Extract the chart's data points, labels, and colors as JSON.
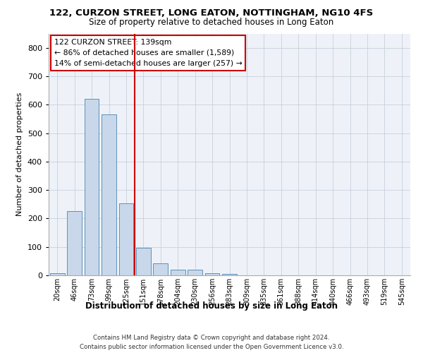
{
  "title": "122, CURZON STREET, LONG EATON, NOTTINGHAM, NG10 4FS",
  "subtitle": "Size of property relative to detached houses in Long Eaton",
  "xlabel": "Distribution of detached houses by size in Long Eaton",
  "ylabel": "Number of detached properties",
  "bar_color": "#c8d8ea",
  "bar_edge_color": "#6090b8",
  "bin_labels": [
    "20sqm",
    "46sqm",
    "73sqm",
    "99sqm",
    "125sqm",
    "151sqm",
    "178sqm",
    "204sqm",
    "230sqm",
    "256sqm",
    "283sqm",
    "309sqm",
    "335sqm",
    "361sqm",
    "388sqm",
    "414sqm",
    "440sqm",
    "466sqm",
    "493sqm",
    "519sqm",
    "545sqm"
  ],
  "bar_values": [
    8,
    225,
    620,
    565,
    253,
    96,
    42,
    20,
    20,
    8,
    4,
    0,
    0,
    0,
    0,
    0,
    0,
    0,
    0,
    0,
    0
  ],
  "vline_x": 4.5,
  "vline_color": "#cc0000",
  "annotation_line1": "122 CURZON STREET: 139sqm",
  "annotation_line2": "← 86% of detached houses are smaller (1,589)",
  "annotation_line3": "14% of semi-detached houses are larger (257) →",
  "annotation_box_edge_color": "#cc0000",
  "ylim": [
    0,
    850
  ],
  "yticks": [
    0,
    100,
    200,
    300,
    400,
    500,
    600,
    700,
    800
  ],
  "footer_line1": "Contains HM Land Registry data © Crown copyright and database right 2024.",
  "footer_line2": "Contains public sector information licensed under the Open Government Licence v3.0.",
  "plot_bg_color": "#eef2f8",
  "grid_color": "#c8d0dc"
}
